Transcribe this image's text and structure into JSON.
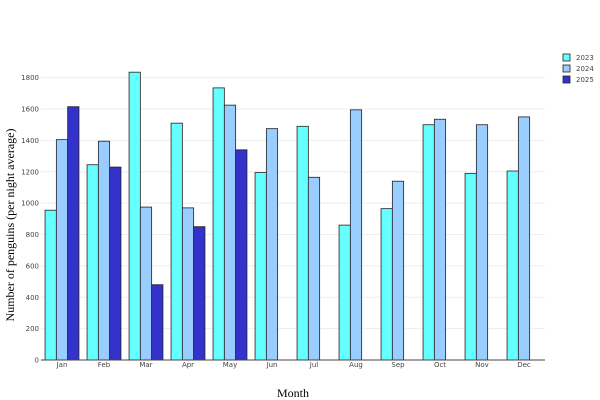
{
  "chart_data": {
    "type": "bar",
    "title": "",
    "xlabel": "Month",
    "ylabel": "Number of penguins (per night average)",
    "categories": [
      "Jan",
      "Feb",
      "Mar",
      "Apr",
      "May",
      "Jun",
      "Jul",
      "Aug",
      "Sep",
      "Oct",
      "Nov",
      "Dec"
    ],
    "series": [
      {
        "name": "2023",
        "color": "#66ffff",
        "values": [
          955,
          1245,
          1835,
          1510,
          1735,
          1195,
          1490,
          860,
          965,
          1500,
          1190,
          1205
        ]
      },
      {
        "name": "2024",
        "color": "#99ccff",
        "values": [
          1405,
          1395,
          975,
          970,
          1625,
          1475,
          1165,
          1595,
          1140,
          1535,
          1500,
          1550
        ]
      },
      {
        "name": "2025",
        "color": "#3333cc",
        "values": [
          1615,
          1230,
          480,
          850,
          1340,
          null,
          null,
          null,
          null,
          null,
          null,
          null
        ]
      }
    ],
    "ylim": [
      0,
      1900
    ],
    "yticks": [
      0,
      200,
      400,
      600,
      800,
      1000,
      1200,
      1400,
      1600,
      1800
    ],
    "grid": true,
    "legend": "top-right"
  }
}
